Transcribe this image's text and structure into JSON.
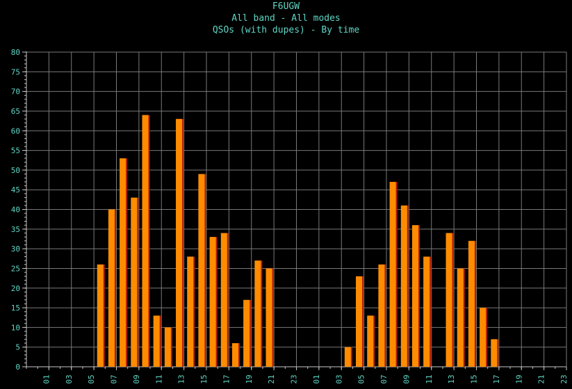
{
  "title_lines": [
    "F6UGW",
    "All band - All modes",
    "QSOs (with dupes) - By time"
  ],
  "colors": {
    "background": "#000000",
    "grid": "#7a7a7a",
    "axis": "#c8c8c8",
    "text": "#5fd7c6",
    "bar": "#ff8c00",
    "bar_shadow": "#b02000"
  },
  "chart_data": {
    "type": "bar",
    "title": "F6UGW",
    "subtitle": "All band - All modes / QSOs (with dupes) - By time",
    "xlabel": "",
    "ylabel": "",
    "ylim": [
      0,
      80
    ],
    "ytick_step": 5,
    "grid": true,
    "x_tick_labels": [
      "01",
      "03",
      "05",
      "07",
      "09",
      "11",
      "13",
      "15",
      "17",
      "19",
      "21",
      "23",
      "01",
      "03",
      "05",
      "07",
      "09",
      "11",
      "13",
      "15",
      "17",
      "19",
      "21",
      "23"
    ],
    "values": [
      0,
      0,
      0,
      0,
      0,
      0,
      26,
      40,
      53,
      43,
      64,
      13,
      10,
      63,
      28,
      49,
      33,
      34,
      6,
      17,
      27,
      25,
      0,
      0,
      0,
      0,
      0,
      0,
      5,
      23,
      13,
      26,
      47,
      41,
      36,
      28,
      0,
      34,
      25,
      32,
      15,
      7,
      0,
      0,
      0,
      0,
      0,
      0
    ]
  }
}
